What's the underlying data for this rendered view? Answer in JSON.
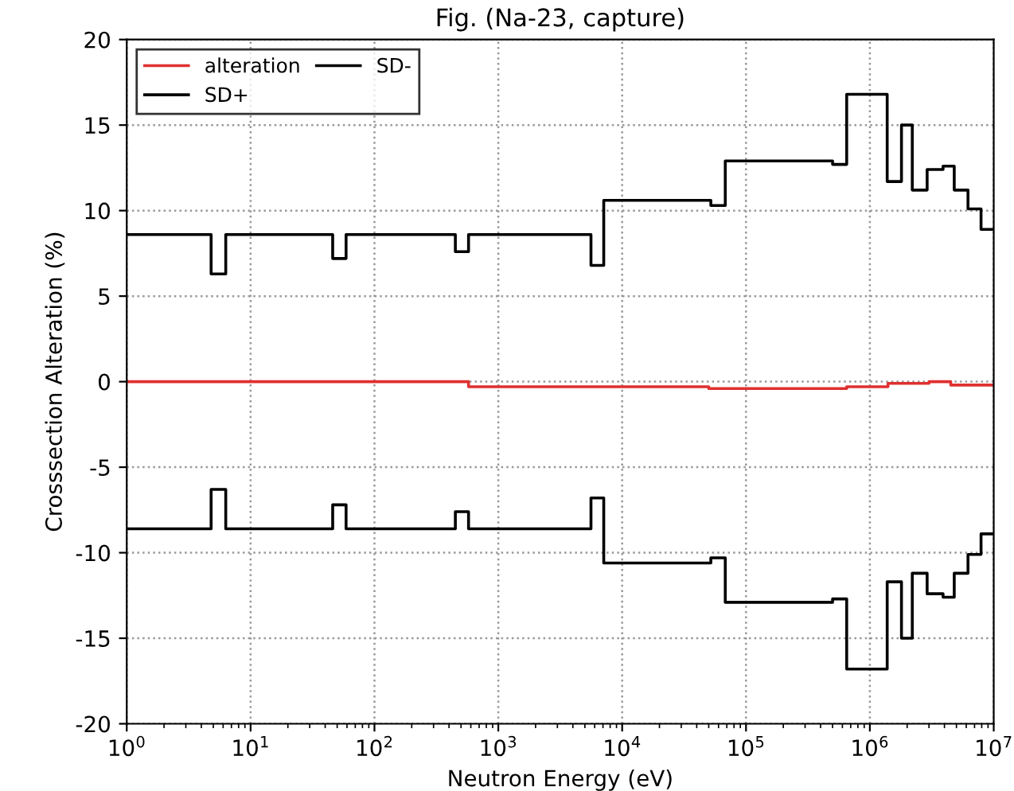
{
  "chart_data": {
    "type": "step",
    "title": "Fig. (Na-23, capture)",
    "xlabel": "Neutron Energy (eV)",
    "ylabel": "Crosssection Alteration (%)",
    "log": "x",
    "xlim": [
      1,
      10000000
    ],
    "xticks": [
      {
        "value": 1,
        "label": "10$^{0}$"
      },
      {
        "value": 10,
        "label": "10$^{1}$"
      },
      {
        "value": 100,
        "label": "10$^{2}$"
      },
      {
        "value": 1000,
        "label": "10$^{3}$"
      },
      {
        "value": 10000,
        "label": "10$^{4}$"
      },
      {
        "value": 100000,
        "label": "10$^{5}$"
      },
      {
        "value": 1000000,
        "label": "10$^{6}$"
      },
      {
        "value": 10000000,
        "label": "10$^{7}$"
      }
    ],
    "ylim": [
      -20,
      20
    ],
    "yticks": [
      -20,
      -15,
      -10,
      -5,
      0,
      5,
      10,
      15,
      20
    ],
    "grid": true,
    "line_style": "solid",
    "legend": "top left",
    "series": [
      {
        "name": "alteration",
        "color": "#e03030",
        "x": [
          1,
          575,
          50000,
          650000,
          1400000,
          3000000,
          4500000,
          10000000
        ],
        "values": [
          0,
          -0.3,
          -0.4,
          -0.3,
          -0.1,
          0,
          -0.2,
          -0.2
        ]
      },
      {
        "name": "SD+",
        "color": "#000000",
        "x": [
          1,
          4.8,
          6.3,
          46,
          59,
          450,
          575,
          5600,
          7100,
          52000,
          68000,
          500000,
          650000,
          1380000,
          1800000,
          2200000,
          2900000,
          3900000,
          4800000,
          6200000,
          7900000,
          10000000
        ],
        "values": [
          8.6,
          6.3,
          8.6,
          7.2,
          8.6,
          7.6,
          8.6,
          6.8,
          10.6,
          10.3,
          12.9,
          12.7,
          16.8,
          11.7,
          15.0,
          11.2,
          12.4,
          12.6,
          11.2,
          10.1,
          8.9,
          8.9
        ]
      },
      {
        "name": "SD-",
        "color": "#000000",
        "x": [
          1,
          4.8,
          6.3,
          46,
          59,
          450,
          575,
          5600,
          7100,
          52000,
          68000,
          500000,
          650000,
          1380000,
          1800000,
          2200000,
          2900000,
          3900000,
          4800000,
          6200000,
          7900000,
          10000000
        ],
        "values": [
          -8.6,
          -6.3,
          -8.6,
          -7.2,
          -8.6,
          -7.6,
          -8.6,
          -6.8,
          -10.6,
          -10.3,
          -12.9,
          -12.7,
          -16.8,
          -11.7,
          -15.0,
          -11.2,
          -12.4,
          -12.6,
          -11.2,
          -10.1,
          -8.9,
          -8.9
        ]
      }
    ]
  }
}
